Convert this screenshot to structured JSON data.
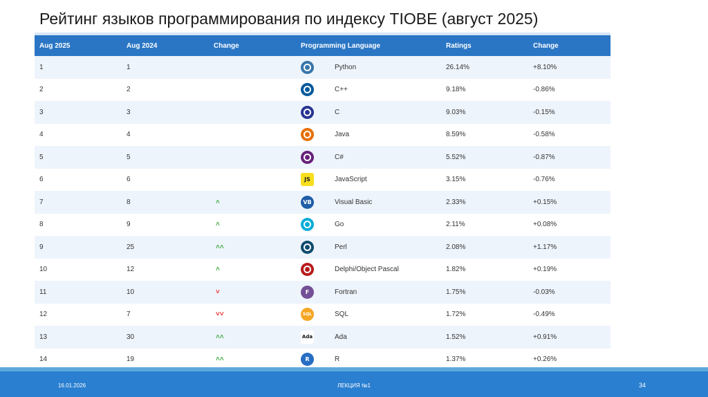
{
  "slide": {
    "title": "Рейтинг языков программирования по индексу TIOBE (август 2025)",
    "footer_date": "16.01.2026",
    "footer_center": "ЛЕКЦИЯ №1",
    "page_number": "34"
  },
  "table": {
    "headers": [
      "Aug 2025",
      "Aug 2024",
      "Change",
      "Programming Language",
      "Ratings",
      "Change"
    ],
    "rows": [
      {
        "aug2025": "1",
        "aug2024": "1",
        "trend": "none",
        "language": "Python",
        "rating": "26.14%",
        "change": "+8.10%",
        "logo_icon": "python-logo-icon",
        "logo_color": "#3776ab",
        "logo_text": ""
      },
      {
        "aug2025": "2",
        "aug2024": "2",
        "trend": "none",
        "language": "C++",
        "rating": "9.18%",
        "change": "-0.86%",
        "logo_icon": "cpp-logo-icon",
        "logo_color": "#00599c",
        "logo_text": ""
      },
      {
        "aug2025": "3",
        "aug2024": "3",
        "trend": "none",
        "language": "C",
        "rating": "9.03%",
        "change": "-0.15%",
        "logo_icon": "c-logo-icon",
        "logo_color": "#283593",
        "logo_text": ""
      },
      {
        "aug2025": "4",
        "aug2024": "4",
        "trend": "none",
        "language": "Java",
        "rating": "8.59%",
        "change": "-0.58%",
        "logo_icon": "java-logo-icon",
        "logo_color": "#e76f00",
        "logo_text": ""
      },
      {
        "aug2025": "5",
        "aug2024": "5",
        "trend": "none",
        "language": "C#",
        "rating": "5.52%",
        "change": "-0.87%",
        "logo_icon": "csharp-logo-icon",
        "logo_color": "#68217a",
        "logo_text": ""
      },
      {
        "aug2025": "6",
        "aug2024": "6",
        "trend": "none",
        "language": "JavaScript",
        "rating": "3.15%",
        "change": "-0.76%",
        "logo_icon": "javascript-logo-icon",
        "logo_color": "#f7df1e",
        "logo_text": "JS"
      },
      {
        "aug2025": "7",
        "aug2024": "8",
        "trend": "up",
        "language": "Visual Basic",
        "rating": "2.33%",
        "change": "+0.15%",
        "logo_icon": "visual-basic-logo-icon",
        "logo_color": "#1f5ea8",
        "logo_text": "VB"
      },
      {
        "aug2025": "8",
        "aug2024": "9",
        "trend": "up",
        "language": "Go",
        "rating": "2.11%",
        "change": "+0.08%",
        "logo_icon": "go-logo-icon",
        "logo_color": "#00add8",
        "logo_text": ""
      },
      {
        "aug2025": "9",
        "aug2024": "25",
        "trend": "double-up",
        "language": "Perl",
        "rating": "2.08%",
        "change": "+1.17%",
        "logo_icon": "perl-logo-icon",
        "logo_color": "#0f4c6e",
        "logo_text": ""
      },
      {
        "aug2025": "10",
        "aug2024": "12",
        "trend": "up",
        "language": "Delphi/Object Pascal",
        "rating": "1.82%",
        "change": "+0.19%",
        "logo_icon": "delphi-logo-icon",
        "logo_color": "#b71c1c",
        "logo_text": ""
      },
      {
        "aug2025": "11",
        "aug2024": "10",
        "trend": "down",
        "language": "Fortran",
        "rating": "1.75%",
        "change": "-0.03%",
        "logo_icon": "fortran-logo-icon",
        "logo_color": "#734f96",
        "logo_text": "F"
      },
      {
        "aug2025": "12",
        "aug2024": "7",
        "trend": "double-down",
        "language": "SQL",
        "rating": "1.72%",
        "change": "-0.49%",
        "logo_icon": "sql-logo-icon",
        "logo_color": "#f5a623",
        "logo_text": "SQL"
      },
      {
        "aug2025": "13",
        "aug2024": "30",
        "trend": "double-up",
        "language": "Ada",
        "rating": "1.52%",
        "change": "+0.91%",
        "logo_icon": "ada-logo-icon",
        "logo_color": "#ffffff",
        "logo_text": "Ada"
      },
      {
        "aug2025": "14",
        "aug2024": "19",
        "trend": "double-up",
        "language": "R",
        "rating": "1.37%",
        "change": "+0.26%",
        "logo_icon": "r-logo-icon",
        "logo_color": "#276dc3",
        "logo_text": "R"
      }
    ]
  }
}
